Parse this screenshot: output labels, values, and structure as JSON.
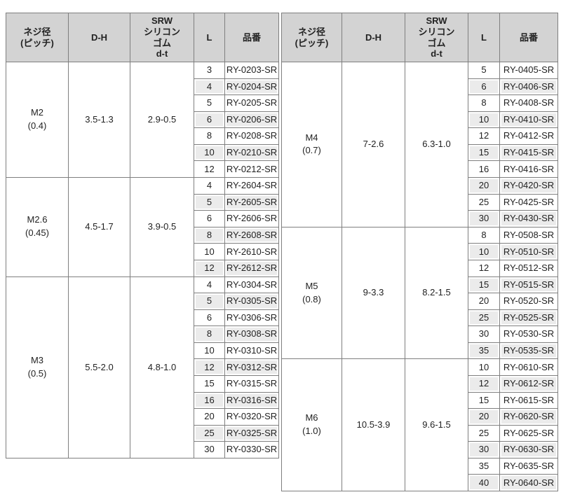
{
  "colors": {
    "header_bg": "#d3d3d3",
    "stripe_bg": "#ebebeb",
    "border": "#7f7f7f",
    "text": "#222222"
  },
  "header": {
    "size": "ネジ径\n(ピッチ)",
    "dh": "D-H",
    "srw": "SRW\nシリコン\nゴム\nd-t",
    "l": "L",
    "part": "品番"
  },
  "tables": [
    {
      "name": "left",
      "sections": [
        {
          "size": "M2\n(0.4)",
          "dh": "3.5-1.3",
          "srw": "2.9-0.5",
          "rows": [
            [
              "3",
              "RY-0203-SR"
            ],
            [
              "4",
              "RY-0204-SR"
            ],
            [
              "5",
              "RY-0205-SR"
            ],
            [
              "6",
              "RY-0206-SR"
            ],
            [
              "8",
              "RY-0208-SR"
            ],
            [
              "10",
              "RY-0210-SR"
            ],
            [
              "12",
              "RY-0212-SR"
            ]
          ]
        },
        {
          "size": "M2.6\n(0.45)",
          "dh": "4.5-1.7",
          "srw": "3.9-0.5",
          "rows": [
            [
              "4",
              "RY-2604-SR"
            ],
            [
              "5",
              "RY-2605-SR"
            ],
            [
              "6",
              "RY-2606-SR"
            ],
            [
              "8",
              "RY-2608-SR"
            ],
            [
              "10",
              "RY-2610-SR"
            ],
            [
              "12",
              "RY-2612-SR"
            ]
          ]
        },
        {
          "size": "M3\n(0.5)",
          "dh": "5.5-2.0",
          "srw": "4.8-1.0",
          "rows": [
            [
              "4",
              "RY-0304-SR"
            ],
            [
              "5",
              "RY-0305-SR"
            ],
            [
              "6",
              "RY-0306-SR"
            ],
            [
              "8",
              "RY-0308-SR"
            ],
            [
              "10",
              "RY-0310-SR"
            ],
            [
              "12",
              "RY-0312-SR"
            ],
            [
              "15",
              "RY-0315-SR"
            ],
            [
              "16",
              "RY-0316-SR"
            ],
            [
              "20",
              "RY-0320-SR"
            ],
            [
              "25",
              "RY-0325-SR"
            ],
            [
              "30",
              "RY-0330-SR"
            ]
          ]
        }
      ]
    },
    {
      "name": "right",
      "sections": [
        {
          "size": "M4\n(0.7)",
          "dh": "7-2.6",
          "srw": "6.3-1.0",
          "rows": [
            [
              "5",
              "RY-0405-SR"
            ],
            [
              "6",
              "RY-0406-SR"
            ],
            [
              "8",
              "RY-0408-SR"
            ],
            [
              "10",
              "RY-0410-SR"
            ],
            [
              "12",
              "RY-0412-SR"
            ],
            [
              "15",
              "RY-0415-SR"
            ],
            [
              "16",
              "RY-0416-SR"
            ],
            [
              "20",
              "RY-0420-SR"
            ],
            [
              "25",
              "RY-0425-SR"
            ],
            [
              "30",
              "RY-0430-SR"
            ]
          ]
        },
        {
          "size": "M5\n(0.8)",
          "dh": "9-3.3",
          "srw": "8.2-1.5",
          "rows": [
            [
              "8",
              "RY-0508-SR"
            ],
            [
              "10",
              "RY-0510-SR"
            ],
            [
              "12",
              "RY-0512-SR"
            ],
            [
              "15",
              "RY-0515-SR"
            ],
            [
              "20",
              "RY-0520-SR"
            ],
            [
              "25",
              "RY-0525-SR"
            ],
            [
              "30",
              "RY-0530-SR"
            ],
            [
              "35",
              "RY-0535-SR"
            ]
          ]
        },
        {
          "size": "M6\n(1.0)",
          "dh": "10.5-3.9",
          "srw": "9.6-1.5",
          "rows": [
            [
              "10",
              "RY-0610-SR"
            ],
            [
              "12",
              "RY-0612-SR"
            ],
            [
              "15",
              "RY-0615-SR"
            ],
            [
              "20",
              "RY-0620-SR"
            ],
            [
              "25",
              "RY-0625-SR"
            ],
            [
              "30",
              "RY-0630-SR"
            ],
            [
              "35",
              "RY-0635-SR"
            ],
            [
              "40",
              "RY-0640-SR"
            ]
          ]
        }
      ]
    }
  ]
}
